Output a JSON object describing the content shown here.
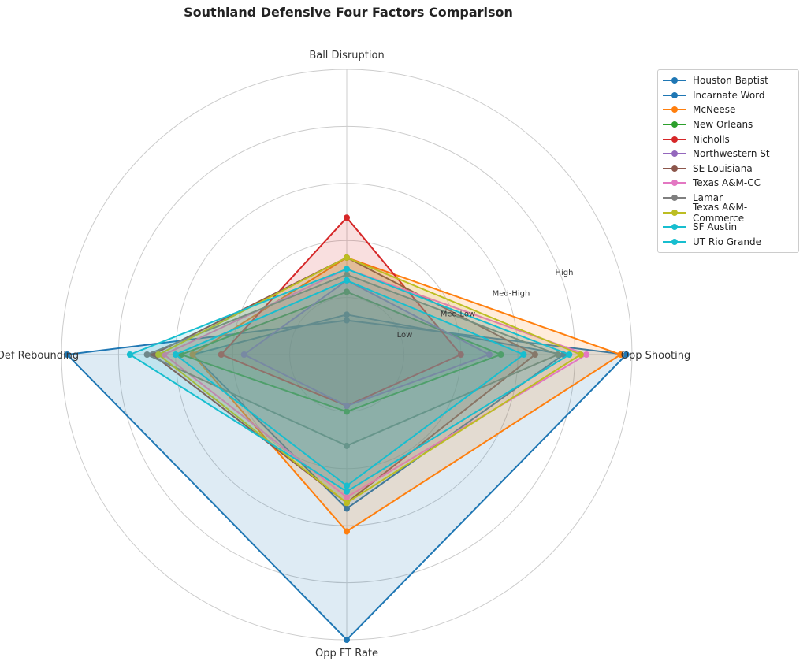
{
  "chart_data": {
    "type": "radar",
    "title": "Southland Defensive Four Factors Comparison",
    "axes": [
      "Ball Disruption",
      "Opp Shooting",
      "Opp FT Rate",
      "Def Rebounding"
    ],
    "radial_range": [
      0,
      5
    ],
    "radial_ticks": [
      1,
      2,
      3,
      4,
      5
    ],
    "radial_tick_labels": [
      "Low",
      "Med-Low",
      "Med-High",
      "High",
      ""
    ],
    "grid": true,
    "legend_position": "upper-right",
    "series": [
      {
        "name": "Houston Baptist",
        "color": "#1f77b4",
        "values": [
          0.6,
          4.9,
          5.0,
          4.9
        ]
      },
      {
        "name": "Incarnate Word",
        "color": "#1f77b4",
        "values": [
          0.7,
          3.8,
          2.7,
          2.7
        ]
      },
      {
        "name": "McNeese",
        "color": "#ff7f0e",
        "values": [
          1.7,
          4.8,
          3.1,
          2.7
        ]
      },
      {
        "name": "New Orleans",
        "color": "#2ca02c",
        "values": [
          1.1,
          2.7,
          1.0,
          2.9
        ]
      },
      {
        "name": "Nicholls",
        "color": "#d62728",
        "values": [
          2.4,
          2.0,
          0.9,
          2.2
        ]
      },
      {
        "name": "Northwestern St",
        "color": "#9467bd",
        "values": [
          1.3,
          2.5,
          0.9,
          1.8
        ]
      },
      {
        "name": "SE Louisiana",
        "color": "#8c564b",
        "values": [
          1.7,
          3.3,
          2.6,
          3.4
        ]
      },
      {
        "name": "Texas A&M-CC",
        "color": "#e377c2",
        "values": [
          1.5,
          4.2,
          2.5,
          3.2
        ]
      },
      {
        "name": "Lamar",
        "color": "#7f7f7f",
        "values": [
          1.4,
          3.7,
          1.6,
          3.5
        ]
      },
      {
        "name": "Texas A&M-Commerce",
        "color": "#bcbd22",
        "values": [
          1.7,
          4.1,
          2.6,
          3.3
        ]
      },
      {
        "name": "SF Austin",
        "color": "#17becf",
        "values": [
          1.5,
          3.9,
          2.4,
          3.8
        ]
      },
      {
        "name": "UT Rio Grande",
        "color": "#17becf",
        "values": [
          1.3,
          3.1,
          2.3,
          3.0
        ]
      }
    ]
  }
}
